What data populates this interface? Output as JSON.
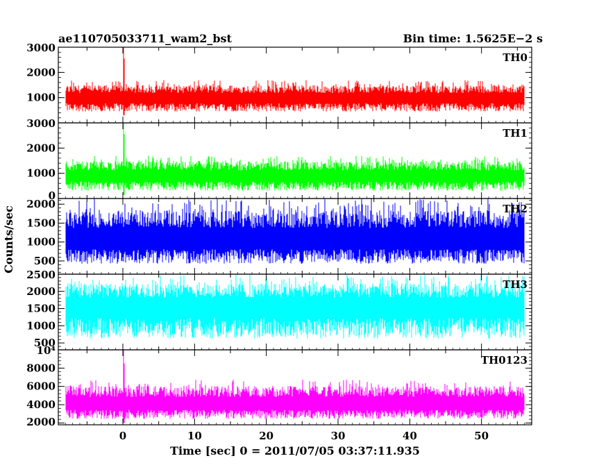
{
  "header": {
    "left_title": "ae110705033711_wam2_bst",
    "right_title": "Bin time: 1.5625E−2 s"
  },
  "chart_data": {
    "type": "line",
    "title": "ae110705033711_wam2_bst",
    "subtitle": "Bin time: 1.5625E−2 s",
    "xlabel": "Time [sec] 0 = 2011/07/05 03:37:11.935",
    "ylabel": "Counts/sec",
    "xlim": [
      -9,
      57
    ],
    "x_ticks": [
      0,
      10,
      20,
      30,
      40,
      50
    ],
    "data_x_range": [
      -8,
      56
    ],
    "grid": false,
    "panels": [
      {
        "name": "TH0",
        "color": "#ff0000",
        "ylim": [
          0,
          3000
        ],
        "y_ticks": [
          1000,
          2000,
          3000
        ],
        "y_tick_labels": [
          "1000",
          "2000",
          "3000"
        ],
        "baseline_mean": 900,
        "typical_range": [
          300,
          1700
        ],
        "spike": {
          "x": 0.1,
          "peak": 3000
        }
      },
      {
        "name": "TH1",
        "color": "#00ff00",
        "ylim": [
          0,
          3000
        ],
        "y_ticks": [
          0,
          1000,
          2000,
          3000
        ],
        "y_tick_labels": [
          "0",
          "1000",
          "2000",
          "3000"
        ],
        "baseline_mean": 800,
        "typical_range": [
          150,
          1700
        ],
        "spike": {
          "x": 0.1,
          "peak": 3000
        }
      },
      {
        "name": "TH2",
        "color": "#0000ff",
        "ylim": [
          150,
          2150
        ],
        "y_ticks": [
          500,
          1000,
          1500,
          2000
        ],
        "y_tick_labels": [
          "500",
          "1000",
          "1500",
          "2000"
        ],
        "baseline_mean": 950,
        "typical_range": [
          250,
          2150
        ],
        "spike": null
      },
      {
        "name": "TH3",
        "color": "#00ffff",
        "ylim": [
          300,
          2500
        ],
        "y_ticks": [
          500,
          1000,
          1500,
          2000,
          2500
        ],
        "y_tick_labels": [
          "500",
          "1000",
          "1500",
          "2000",
          "2500"
        ],
        "baseline_mean": 1450,
        "typical_range": [
          350,
          2500
        ],
        "spike": null
      },
      {
        "name": "TH0123",
        "color": "#ff00ff",
        "ylim": [
          1800,
          10000
        ],
        "y_ticks": [
          2000,
          4000,
          6000,
          8000,
          10000
        ],
        "y_tick_labels": [
          "2000",
          "4000",
          "6000",
          "8000",
          "10⁴"
        ],
        "baseline_mean": 3800,
        "typical_range": [
          2000,
          6800
        ],
        "spike": {
          "x": 0.1,
          "peak": 10000
        }
      }
    ]
  }
}
